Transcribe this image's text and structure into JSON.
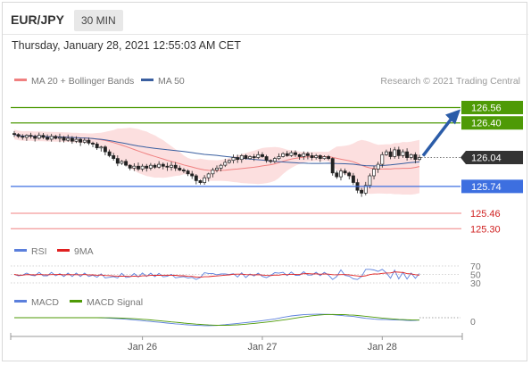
{
  "header": {
    "pair": "EUR/JPY",
    "timeframe": "30 MIN"
  },
  "timestamp": "Thursday, January 28, 2021 12:55:03 AM CET",
  "legend": {
    "ma20": "MA 20 + Bollinger Bands",
    "ma50": "MA 50",
    "credit": "Research © 2021 Trading Central"
  },
  "colors": {
    "green": "#4e9a06",
    "blue": "#3d6fe0",
    "red": "#f08080",
    "candle": "#222222",
    "ma50": "#3a5fa0",
    "bollinger": "#fbd4d4"
  },
  "chart_data": [
    {
      "type": "candlestick",
      "name": "main",
      "ylim": [
        125.21,
        126.75
      ],
      "x_ticks": [
        "Jan 26",
        "Jan 27",
        "Jan 28"
      ],
      "last_price": "126.04",
      "levels": [
        {
          "label": "126.56",
          "value": 126.56,
          "color": "#4e9a06"
        },
        {
          "label": "126.40",
          "value": 126.4,
          "color": "#4e9a06"
        },
        {
          "label": "125.74",
          "value": 125.74,
          "color": "#3d6fe0"
        },
        {
          "label": "125.46",
          "value": 125.46,
          "color": "#f08080"
        },
        {
          "label": "125.30",
          "value": 125.3,
          "color": "#f08080"
        }
      ],
      "close": [
        126.28,
        126.26,
        126.25,
        126.27,
        126.26,
        126.24,
        126.27,
        126.25,
        126.23,
        126.26,
        126.24,
        126.25,
        126.22,
        126.24,
        126.21,
        126.23,
        126.2,
        126.22,
        126.19,
        126.18,
        126.14,
        126.15,
        126.1,
        126.06,
        126.03,
        125.98,
        126.0,
        125.96,
        125.93,
        125.95,
        125.92,
        125.95,
        125.93,
        125.96,
        125.94,
        125.97,
        125.95,
        125.94,
        125.96,
        125.93,
        125.91,
        125.9,
        125.87,
        125.85,
        125.8,
        125.78,
        125.83,
        125.87,
        125.91,
        125.93,
        125.96,
        125.99,
        126.01,
        126.04,
        126.02,
        126.06,
        126.03,
        126.05,
        126.04,
        126.07,
        126.05,
        126.01,
        126.0,
        126.03,
        126.05,
        126.08,
        126.06,
        126.09,
        126.07,
        126.05,
        126.08,
        126.06,
        126.04,
        126.06,
        126.03,
        126.05,
        126.03,
        125.88,
        125.84,
        125.9,
        125.88,
        125.85,
        125.78,
        125.7,
        125.67,
        125.75,
        125.85,
        125.92,
        125.97,
        126.07,
        126.1,
        126.05,
        126.12,
        126.06,
        126.1,
        126.04,
        126.07,
        126.02,
        126.04
      ],
      "rsi_ticks": [
        "70",
        "50",
        "30"
      ],
      "macd_tick": "0"
    }
  ],
  "rsi_legend": {
    "rsi": "RSI",
    "ma9": "9MA"
  },
  "macd_legend": {
    "macd": "MACD",
    "signal": "MACD Signal"
  }
}
